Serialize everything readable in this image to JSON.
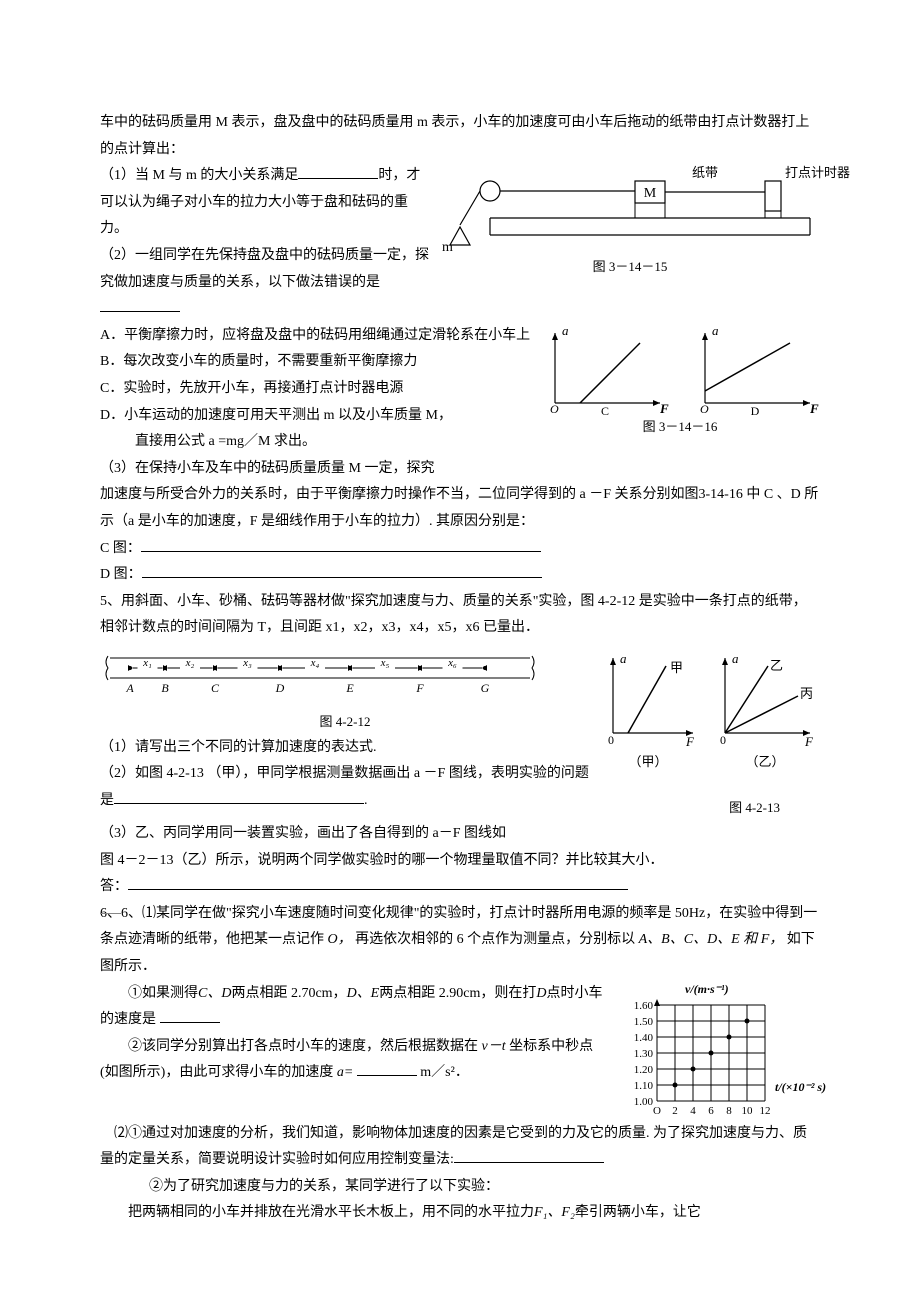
{
  "p_top": "车中的砝码质量用 M 表示，盘及盘中的砝码质量用 m 表示，小车的加速度可由小车后拖动的纸带由打点计数器打上的点计算出：",
  "q1_a": "（1）当 M 与 m 的大小关系满足",
  "q1_b": "时，才可以认为绳子对小车的拉力大小等于盘和砝码的重力。",
  "q2_a": "（2）一组同学在先保持盘及盘中的砝码质量一定，探究做加速度与质量的关系，以下做法错误的是",
  "fig1": {
    "M": "M",
    "m": "m",
    "tape": "纸带",
    "timer": "打点计时器",
    "caption": "图 3－14－15"
  },
  "optA": "A．平衡摩擦力时，应将盘及盘中的砝码用细绳通过定滑轮系在小车上",
  "optB": "B．每次改变小车的质量时，不需要重新平衡摩擦力",
  "optC": "C．实验时，先放开小车，再接通打点计时器电源",
  "optD": "D．小车运动的加速度可用天平测出 m 以及小车质量 M，",
  "optD2": "直接用公式 a =mg／M 求出。",
  "fig2": {
    "a": "a",
    "F": "F",
    "O": "O",
    "labelC": "C",
    "labelD": "D",
    "caption": "图 3－14－16"
  },
  "q3_a": "（3）在保持小车及车中的砝码质量质量 M 一定，探究",
  "q3_b": "加速度与所受合外力的关系时，由于平衡摩擦力时操作不当，二位同学得到的 a －F 关系分别如图3-14-16 中 C 、D 所示（a 是小车的加速度，F 是细线作用于小车的拉力）. 其原因分别是：",
  "cfig": "C 图：",
  "dfig": "D 图：",
  "q5": "5、用斜面、小车、砂桶、砝码等器材做\"探究加速度与力、质量的关系\"实验，图 4-2-12 是实验中一条打点的纸带，相邻计数点的时间间隔为 T，且间距 x1，x2，x3，x4，x5，x6 已量出．",
  "tape": {
    "labels": [
      "A",
      "B",
      "C",
      "D",
      "E",
      "F",
      "G"
    ],
    "segs": [
      "x₁",
      "x₂",
      "x₃",
      "x₄",
      "x₅",
      "x₆"
    ],
    "caption": "图 4-2-12"
  },
  "chart45": {
    "a": "a",
    "F": "F",
    "jia": "甲",
    "yi": "乙",
    "bing": "丙",
    "capJ": "（甲）",
    "capY": "（乙）",
    "caption": "图 4-2-13"
  },
  "q5_1": "（1）请写出三个不同的计算加速度的表达式.",
  "q5_2a": "（2）如图 4-2-13 （甲），甲同学根据测量数据画出 a －F 图线，表明实验的问题是",
  "q5_2b": ".",
  "q5_3a": "（3）乙、丙同学用同一装置实验，画出了各自得到的 a－F 图线如",
  "q5_3b": "图 4－2－13（乙）所示，说明两个同学做实验时的哪一个物理量取值不同？并比较其大小．",
  "ans": "答：",
  "q6a": "6、⑴某同学在做\"探究小车速度随时间变化规律\"的实验时，打点计时器所用电源的频率是 50Hz，在实验中得到一条点迹清晰的纸带，他把某一点记作",
  "q6o": "O，",
  "q6b": "再选依次相邻的 6 个点作为测量点，分别标以",
  "q6c": "A、B、C、D、E 和 F，",
  "q6d": "如下图所示．",
  "q6_1a": "①如果测得",
  "q6_1b": "C、D",
  "q6_1c": "两点相距 2.70cm，",
  "q6_1d": "D、E",
  "q6_1e": "两点相距 2.90cm，则在打",
  "q6_1f": "D",
  "q6_1g": "点时小车的速度是",
  "q6_2a": "②该同学分别算出打各点时小车的速度，然后根据数据在",
  "q6_2it": "v－t",
  "q6_2b": "坐标系中秒点(如图所示)，由此可求得小车的加速度",
  "q6_2c": "a=",
  "q6_2d": "m／s²．",
  "vtchart": {
    "ylabel": "v/(m·s⁻¹)",
    "xlabel": "t/(×10⁻² s)",
    "yticks": [
      "1.00",
      "1.10",
      "1.20",
      "1.30",
      "1.40",
      "1.50",
      "1.60"
    ],
    "xticks": [
      "O",
      "2",
      "4",
      "6",
      "8",
      "10",
      "12"
    ],
    "points": [
      [
        2,
        1.1
      ],
      [
        4,
        1.2
      ],
      [
        6,
        1.3
      ],
      [
        8,
        1.4
      ],
      [
        10,
        1.5
      ]
    ]
  },
  "q6p2a": "⑵①通过对加速度的分析，我们知道，影响物体加速度的因素是它受到的力及它的质量. 为了探究加速度与力、质量的定量关系，简要说明设计实验时如何应用控制变量法:",
  "q6p2b": "②为了研究加速度与力的关系，某同学进行了以下实验：",
  "q6p2c_a": "把两辆相同的小车并排放在光滑水平长木板上，用不同的水平拉力",
  "q6p2c_b": "F₁、F₂",
  "q6p2c_c": "牵引两辆小车，让它"
}
